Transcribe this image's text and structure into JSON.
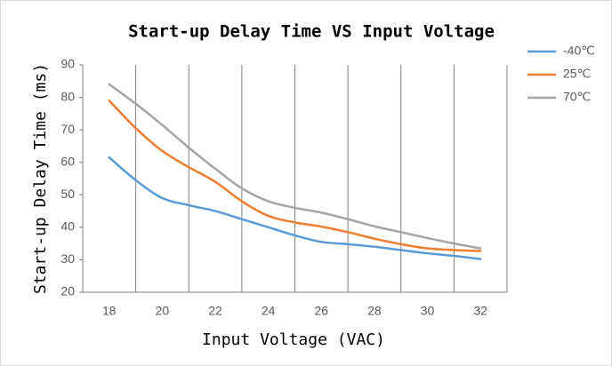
{
  "chart_data": {
    "type": "line",
    "title": "Start-up Delay Time VS Input Voltage",
    "x_label": "Input Voltage (VAC)",
    "y_label": "Start-up Delay Time (ms)",
    "x": [
      18,
      19,
      20,
      21,
      22,
      23,
      24,
      25,
      26,
      27,
      28,
      29,
      30,
      31,
      32
    ],
    "series": [
      {
        "name": "-40℃",
        "color": "#5b9bd5",
        "values": [
          61.5,
          54.5,
          49,
          46.8,
          45,
          42.5,
          40,
          37.5,
          35.5,
          34.8,
          34,
          33,
          32,
          31.2,
          30.2
        ]
      },
      {
        "name": "25℃",
        "color": "#ed7d31",
        "values": [
          79,
          70.5,
          63.5,
          58.5,
          54,
          48,
          43.5,
          41.5,
          40.2,
          38.5,
          36.5,
          34.8,
          33.5,
          33,
          32.7
        ]
      },
      {
        "name": "70℃",
        "color": "#a5a5a5",
        "values": [
          84,
          78,
          71.5,
          64.5,
          58,
          52,
          48,
          46,
          44.5,
          42.5,
          40.3,
          38.5,
          36.7,
          35,
          33.5
        ]
      }
    ],
    "xlim": [
      17,
      33
    ],
    "xticks": [
      18,
      20,
      22,
      24,
      26,
      28,
      30,
      32
    ],
    "xgrid": [
      17,
      19,
      21,
      23,
      25,
      27,
      29,
      31,
      33
    ],
    "ylim": [
      20,
      90
    ],
    "yticks": [
      20,
      30,
      40,
      50,
      60,
      70,
      80,
      90
    ],
    "legend": "right"
  }
}
